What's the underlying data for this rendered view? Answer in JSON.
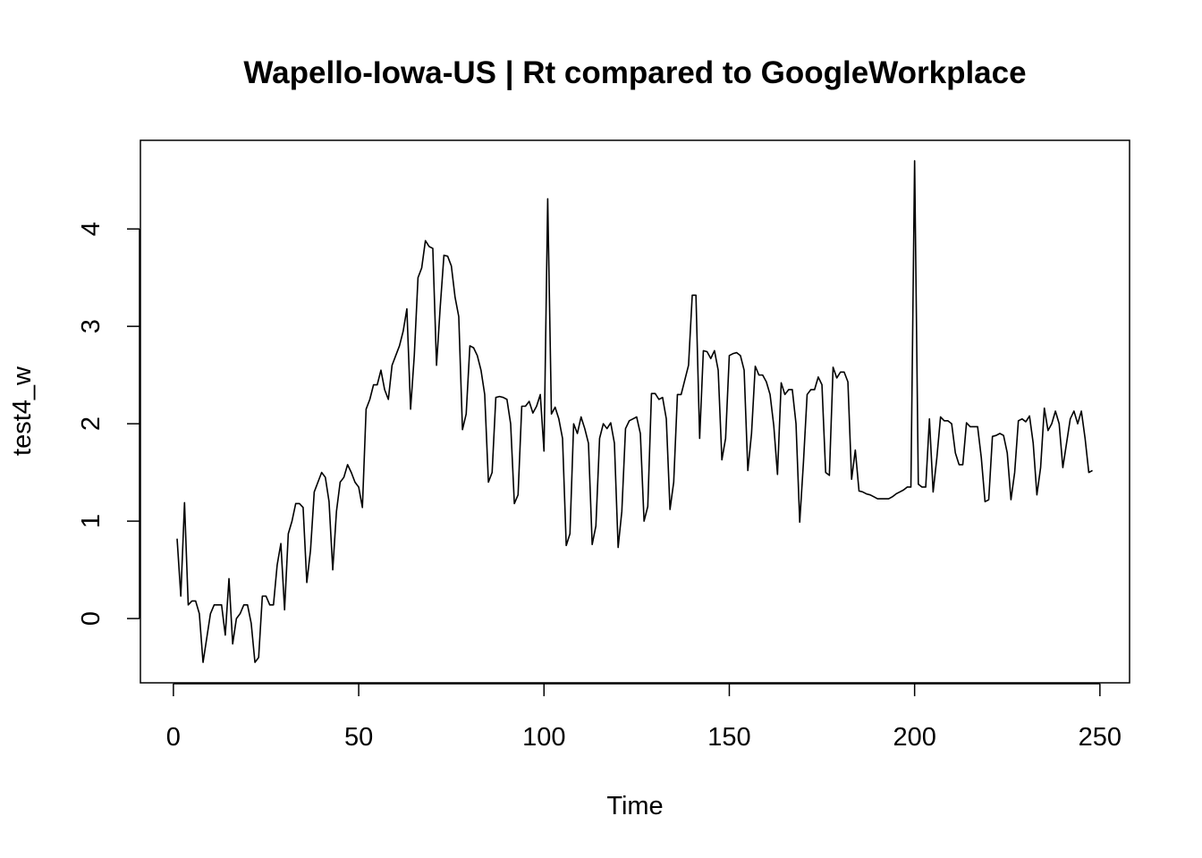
{
  "chart_data": {
    "type": "line",
    "title": "Wapello-Iowa-US | Rt compared to GoogleWorkplace",
    "xlabel": "Time",
    "ylabel": "test4_w",
    "xlim": [
      -8.9,
      258
    ],
    "ylim": [
      -0.66,
      4.91
    ],
    "x_ticks": [
      0,
      50,
      100,
      150,
      200,
      250
    ],
    "y_ticks": [
      0,
      1,
      2,
      3,
      4
    ],
    "grid": false,
    "legend": "none",
    "line_color": "#000000",
    "series": [
      {
        "x_start": 1,
        "values": [
          0.82,
          0.23,
          1.19,
          0.14,
          0.18,
          0.18,
          0.05,
          -0.45,
          -0.2,
          0.05,
          0.14,
          0.14,
          0.14,
          -0.17,
          0.41,
          -0.26,
          0.0,
          0.05,
          0.14,
          0.14,
          -0.05,
          -0.45,
          -0.4,
          0.23,
          0.23,
          0.14,
          0.14,
          0.55,
          0.77,
          0.09,
          0.87,
          1.0,
          1.18,
          1.18,
          1.14,
          0.37,
          0.7,
          1.3,
          1.4,
          1.5,
          1.45,
          1.2,
          0.5,
          1.1,
          1.4,
          1.45,
          1.58,
          1.5,
          1.4,
          1.35,
          1.14,
          2.15,
          2.25,
          2.4,
          2.4,
          2.55,
          2.35,
          2.25,
          2.6,
          2.7,
          2.8,
          2.95,
          3.18,
          2.15,
          2.7,
          3.5,
          3.6,
          3.88,
          3.82,
          3.8,
          2.6,
          3.2,
          3.73,
          3.72,
          3.62,
          3.3,
          3.1,
          1.94,
          2.1,
          2.8,
          2.78,
          2.7,
          2.55,
          2.3,
          1.4,
          1.5,
          2.27,
          2.28,
          2.27,
          2.25,
          2.0,
          1.18,
          1.27,
          2.18,
          2.18,
          2.23,
          2.11,
          2.18,
          2.3,
          1.72,
          4.31,
          2.1,
          2.17,
          2.05,
          1.85,
          0.75,
          0.87,
          2.0,
          1.9,
          2.07,
          1.95,
          1.8,
          0.76,
          0.95,
          1.85,
          2.0,
          1.95,
          2.01,
          1.8,
          0.73,
          1.1,
          1.95,
          2.03,
          2.05,
          2.07,
          1.9,
          1.0,
          1.15,
          2.31,
          2.31,
          2.25,
          2.27,
          2.05,
          1.12,
          1.4,
          2.3,
          2.3,
          2.45,
          2.6,
          3.32,
          3.32,
          1.85,
          2.75,
          2.74,
          2.67,
          2.75,
          2.55,
          1.63,
          1.85,
          2.7,
          2.72,
          2.73,
          2.7,
          2.55,
          1.52,
          1.9,
          2.59,
          2.5,
          2.5,
          2.43,
          2.3,
          1.98,
          1.48,
          2.42,
          2.3,
          2.35,
          2.35,
          2.0,
          0.99,
          1.6,
          2.3,
          2.35,
          2.35,
          2.48,
          2.4,
          1.5,
          1.47,
          2.58,
          2.47,
          2.53,
          2.53,
          2.43,
          1.43,
          1.73,
          1.31,
          1.3,
          1.28,
          1.27,
          1.25,
          1.23,
          1.23,
          1.23,
          1.23,
          1.25,
          1.28,
          1.3,
          1.32,
          1.35,
          1.35,
          4.7,
          1.38,
          1.35,
          1.35,
          2.05,
          1.3,
          1.65,
          2.07,
          2.03,
          2.03,
          2.0,
          1.7,
          1.58,
          1.58,
          2.01,
          1.97,
          1.97,
          1.97,
          1.65,
          1.2,
          1.22,
          1.87,
          1.88,
          1.9,
          1.88,
          1.7,
          1.22,
          1.5,
          2.03,
          2.05,
          2.02,
          2.08,
          1.8,
          1.27,
          1.55,
          2.16,
          1.93,
          2.0,
          2.13,
          2.0,
          1.55,
          1.8,
          2.05,
          2.13,
          2.0,
          2.13,
          1.85,
          1.5,
          1.52
        ]
      }
    ]
  }
}
